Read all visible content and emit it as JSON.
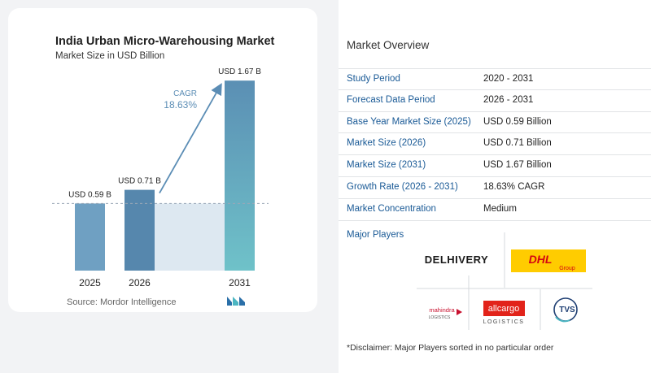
{
  "chart_data": {
    "type": "bar",
    "title": "India Urban Micro-Warehousing Market",
    "subtitle": "Market Size in USD Billion",
    "categories": [
      "2025",
      "2026",
      "2031"
    ],
    "values": [
      0.59,
      0.71,
      1.67
    ],
    "data_labels": [
      "USD 0.59 B",
      "USD 0.71 B",
      "USD 1.67 B"
    ],
    "xlabel": "",
    "ylabel": "",
    "ylim": [
      0,
      1.75
    ],
    "grid": false,
    "annotation": {
      "label": "CAGR",
      "value": "18.63%"
    },
    "colors": {
      "bar_light": "#6fa0c2",
      "bar_dark": "#5687ad",
      "bar_tall_top": "#5b8fb4",
      "bar_tall_bottom": "#6fc2c9",
      "band": "#dde8f1",
      "arrow": "#5b8db5"
    }
  },
  "source": "Source:  Mordor Intelligence",
  "logo_icon": "mordor-intelligence-logo-icon",
  "overview": {
    "title": "Market Overview",
    "rows": [
      {
        "label": "Study Period",
        "value": "2020 - 2031"
      },
      {
        "label": "Forecast Data Period",
        "value": "2026 - 2031"
      },
      {
        "label": "Base Year Market Size (2025)",
        "value": "USD 0.59 Billion"
      },
      {
        "label": "Market Size (2026)",
        "value": "USD 0.71 Billion"
      },
      {
        "label": "Market Size (2031)",
        "value": "USD 1.67 Billion"
      },
      {
        "label": "Growth Rate (2026 - 2031)",
        "value": "18.63% CAGR"
      },
      {
        "label": "Market Concentration",
        "value": "Medium"
      }
    ]
  },
  "players": {
    "title": "Major Players",
    "logos": {
      "delhivery": "DELHIVERY",
      "dhl": "DHL",
      "dhl_group": "Group",
      "mahindra": "mahindra",
      "mahindra_sub": "LOGISTICS",
      "allcargo": "allcargo",
      "allcargo_sub": "LOGISTICS",
      "tvs": "TVS"
    }
  },
  "disclaimer": "*Disclaimer: Major Players sorted in no particular order"
}
